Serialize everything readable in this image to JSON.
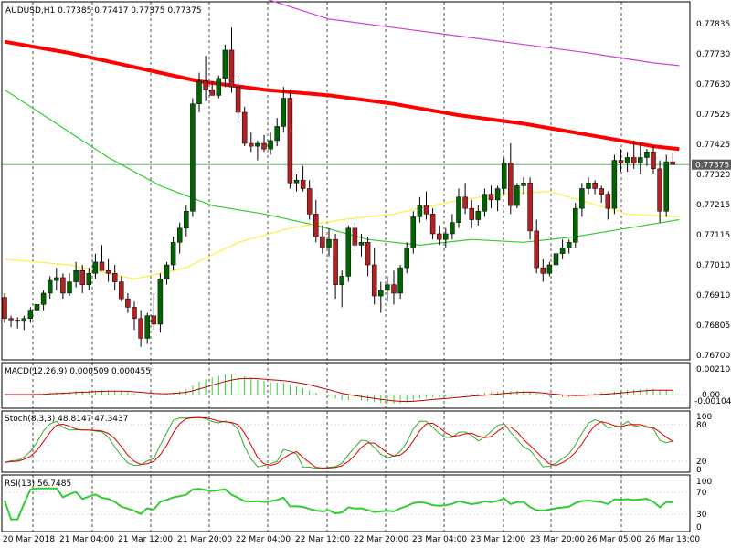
{
  "colors": {
    "bull": "#006400",
    "bear": "#b22222",
    "ma_red": "#ff0000",
    "ma_magenta": "#d43fd4",
    "ma_green": "#33cc33",
    "ma_yellow": "#ffee44",
    "macd_hist": "#33cc33",
    "macd_signal": "#c00000",
    "stoch_main": "#33aa33",
    "stoch_signal": "#dd0000",
    "rsi": "#33cc33",
    "current_price_line": "#33aa33"
  },
  "header": {
    "symbol_line": "AUDUSD,H1  0.77385 0.77417 0.77375 0.77375"
  },
  "price_axis_labels": [
    "0.77835",
    "0.77730",
    "0.77630",
    "0.77525",
    "0.77425",
    "0.77320",
    "0.77215",
    "0.77115",
    "0.77010",
    "0.76910",
    "0.76805",
    "0.76700"
  ],
  "current_price_label": "0.77375",
  "time_labels": [
    "20 Mar 2018",
    "21 Mar 04:00",
    "21 Mar 12:00",
    "21 Mar 20:00",
    "22 Mar 04:00",
    "22 Mar 12:00",
    "22 Mar 20:00",
    "23 Mar 04:00",
    "23 Mar 12:00",
    "23 Mar 20:00",
    "26 Mar 05:00",
    "26 Mar 13:00"
  ],
  "macd": {
    "label": "MACD(12,26,9) 0.000509 0.000455",
    "axis_labels": [
      "0.002104",
      "0.00",
      "-0.001046"
    ]
  },
  "stoch": {
    "label": "Stoch(8,3,3) 48.8147 47.3437",
    "axis_labels": [
      "100",
      "80",
      "20",
      "0"
    ]
  },
  "rsi": {
    "label": "RSI(13) 56.7485",
    "axis_labels": [
      "100",
      "70",
      "30",
      "0"
    ]
  },
  "chart_data": {
    "type": "candlestick",
    "symbol": "AUDUSD",
    "timeframe": "H1",
    "ylim": [
      0.767,
      0.7788
    ],
    "candles": [
      [
        0.76905,
        0.7692,
        0.76815,
        0.7683
      ],
      [
        0.7683,
        0.7684,
        0.768,
        0.76825
      ],
      [
        0.76825,
        0.76835,
        0.76795,
        0.7682
      ],
      [
        0.7682,
        0.7684,
        0.7679,
        0.7683
      ],
      [
        0.7683,
        0.7687,
        0.76815,
        0.7686
      ],
      [
        0.7686,
        0.7689,
        0.7684,
        0.7688
      ],
      [
        0.7688,
        0.7693,
        0.7686,
        0.7692
      ],
      [
        0.7692,
        0.7698,
        0.769,
        0.76965
      ],
      [
        0.76965,
        0.7701,
        0.7693,
        0.76975
      ],
      [
        0.76975,
        0.7699,
        0.769,
        0.7692
      ],
      [
        0.7692,
        0.7699,
        0.7691,
        0.7696
      ],
      [
        0.7696,
        0.7703,
        0.7694,
        0.77
      ],
      [
        0.77,
        0.7702,
        0.7692,
        0.7695
      ],
      [
        0.7695,
        0.7701,
        0.7693,
        0.7699
      ],
      [
        0.7699,
        0.7706,
        0.7697,
        0.7703
      ],
      [
        0.7703,
        0.7709,
        0.7701,
        0.77
      ],
      [
        0.77,
        0.7704,
        0.7696,
        0.7699
      ],
      [
        0.7699,
        0.7702,
        0.7693,
        0.7696
      ],
      [
        0.7696,
        0.7698,
        0.7689,
        0.769
      ],
      [
        0.769,
        0.7692,
        0.7685,
        0.7687
      ],
      [
        0.7687,
        0.7689,
        0.7679,
        0.7683
      ],
      [
        0.7683,
        0.7686,
        0.7673,
        0.7676
      ],
      [
        0.7676,
        0.7685,
        0.7674,
        0.7684
      ],
      [
        0.7684,
        0.7692,
        0.7679,
        0.7681
      ],
      [
        0.7681,
        0.7699,
        0.7678,
        0.7697
      ],
      [
        0.7697,
        0.7703,
        0.7695,
        0.7702
      ],
      [
        0.7702,
        0.7712,
        0.77,
        0.771
      ],
      [
        0.771,
        0.7717,
        0.7706,
        0.7715
      ],
      [
        0.7715,
        0.7723,
        0.7712,
        0.7721
      ],
      [
        0.7721,
        0.7761,
        0.7719,
        0.7759
      ],
      [
        0.7759,
        0.777,
        0.7756,
        0.7767
      ],
      [
        0.7767,
        0.7776,
        0.776,
        0.7764
      ],
      [
        0.7764,
        0.7767,
        0.7762,
        0.7762
      ],
      [
        0.7762,
        0.7769,
        0.7761,
        0.7768
      ],
      [
        0.7768,
        0.778,
        0.7765,
        0.7778
      ],
      [
        0.7778,
        0.7786,
        0.7763,
        0.7765
      ],
      [
        0.7765,
        0.7769,
        0.7752,
        0.7756
      ],
      [
        0.7756,
        0.7758,
        0.7744,
        0.7745
      ],
      [
        0.7745,
        0.7749,
        0.7742,
        0.7744
      ],
      [
        0.7744,
        0.7746,
        0.7739,
        0.7745
      ],
      [
        0.7745,
        0.7748,
        0.7742,
        0.7743
      ],
      [
        0.7743,
        0.7749,
        0.7741,
        0.7746
      ],
      [
        0.7746,
        0.7754,
        0.7744,
        0.7751
      ],
      [
        0.7751,
        0.7765,
        0.7749,
        0.7761
      ],
      [
        0.7761,
        0.7764,
        0.7729,
        0.7731
      ],
      [
        0.7731,
        0.7734,
        0.7728,
        0.7732
      ],
      [
        0.7732,
        0.7737,
        0.7728,
        0.7729
      ],
      [
        0.7729,
        0.7732,
        0.7718,
        0.772
      ],
      [
        0.772,
        0.7725,
        0.771,
        0.7712
      ],
      [
        0.7712,
        0.7716,
        0.7706,
        0.7708
      ],
      [
        0.7708,
        0.7715,
        0.7705,
        0.7711
      ],
      [
        0.7711,
        0.7713,
        0.769,
        0.7695
      ],
      [
        0.7695,
        0.77,
        0.7687,
        0.7698
      ],
      [
        0.7698,
        0.7716,
        0.7696,
        0.7715
      ],
      [
        0.7715,
        0.7717,
        0.7707,
        0.7709
      ],
      [
        0.7709,
        0.7713,
        0.7705,
        0.771
      ],
      [
        0.771,
        0.7712,
        0.7698,
        0.7702
      ],
      [
        0.7702,
        0.7708,
        0.7688,
        0.7691
      ],
      [
        0.7691,
        0.7696,
        0.7685,
        0.7693
      ],
      [
        0.7693,
        0.7698,
        0.7689,
        0.7695
      ],
      [
        0.7695,
        0.77,
        0.7688,
        0.7692
      ],
      [
        0.7692,
        0.7702,
        0.769,
        0.7701
      ],
      [
        0.7701,
        0.771,
        0.7699,
        0.7708
      ],
      [
        0.7708,
        0.7721,
        0.7706,
        0.7719
      ],
      [
        0.7719,
        0.7726,
        0.7717,
        0.7723
      ],
      [
        0.7723,
        0.7728,
        0.7718,
        0.772
      ],
      [
        0.772,
        0.7722,
        0.7711,
        0.7713
      ],
      [
        0.7713,
        0.7716,
        0.7709,
        0.7711
      ],
      [
        0.7711,
        0.7715,
        0.7708,
        0.7713
      ],
      [
        0.7713,
        0.772,
        0.7711,
        0.7717
      ],
      [
        0.7717,
        0.7729,
        0.7715,
        0.7726
      ],
      [
        0.7726,
        0.7731,
        0.772,
        0.7722
      ],
      [
        0.7722,
        0.7725,
        0.7715,
        0.7718
      ],
      [
        0.7718,
        0.7723,
        0.7716,
        0.7721
      ],
      [
        0.7721,
        0.7729,
        0.7719,
        0.7727
      ],
      [
        0.7727,
        0.773,
        0.7722,
        0.7725
      ],
      [
        0.7725,
        0.773,
        0.7721,
        0.7729
      ],
      [
        0.7729,
        0.774,
        0.7727,
        0.7738
      ],
      [
        0.7738,
        0.7745,
        0.772,
        0.7723
      ],
      [
        0.7723,
        0.7731,
        0.7722,
        0.773
      ],
      [
        0.773,
        0.7733,
        0.7727,
        0.7731
      ],
      [
        0.7731,
        0.7733,
        0.7711,
        0.7714
      ],
      [
        0.7714,
        0.7718,
        0.7699,
        0.7701
      ],
      [
        0.7701,
        0.7704,
        0.7696,
        0.7699
      ],
      [
        0.7699,
        0.7703,
        0.7698,
        0.7702
      ],
      [
        0.7702,
        0.7708,
        0.77,
        0.7706
      ],
      [
        0.7706,
        0.7711,
        0.7704,
        0.7708
      ],
      [
        0.7708,
        0.7711,
        0.7706,
        0.771
      ],
      [
        0.771,
        0.7724,
        0.7708,
        0.7722
      ],
      [
        0.7722,
        0.7731,
        0.7719,
        0.7729
      ],
      [
        0.7729,
        0.7733,
        0.7727,
        0.7731
      ],
      [
        0.7731,
        0.7732,
        0.7727,
        0.7729
      ],
      [
        0.7729,
        0.773,
        0.7724,
        0.7727
      ],
      [
        0.7727,
        0.7728,
        0.7718,
        0.7722
      ],
      [
        0.7722,
        0.7741,
        0.772,
        0.7739
      ],
      [
        0.7739,
        0.7743,
        0.7735,
        0.7738
      ],
      [
        0.7738,
        0.7742,
        0.7735,
        0.774
      ],
      [
        0.774,
        0.7746,
        0.7736,
        0.7738
      ],
      [
        0.7738,
        0.7745,
        0.7734,
        0.774
      ],
      [
        0.774,
        0.7743,
        0.7737,
        0.7742
      ],
      [
        0.7742,
        0.7744,
        0.7734,
        0.7736
      ],
      [
        0.7736,
        0.7739,
        0.7717,
        0.7721
      ],
      [
        0.7721,
        0.7741,
        0.7719,
        0.77385
      ],
      [
        0.77385,
        0.77417,
        0.77375,
        0.77375
      ]
    ],
    "series": [
      {
        "type": "line",
        "color_key": "ma_red",
        "points": [
          [
            0,
            0.7781
          ],
          [
            10,
            0.7777
          ],
          [
            20,
            0.7772
          ],
          [
            30,
            0.7767
          ],
          [
            40,
            0.7764
          ],
          [
            50,
            0.7762
          ],
          [
            60,
            0.7759
          ],
          [
            70,
            0.7755
          ],
          [
            80,
            0.7752
          ],
          [
            90,
            0.7748
          ],
          [
            100,
            0.7744
          ],
          [
            104,
            0.7743
          ]
        ]
      },
      {
        "type": "line",
        "color_key": "ma_magenta",
        "points": [
          [
            35,
            0.78
          ],
          [
            50,
            0.7789
          ],
          [
            60,
            0.7786
          ],
          [
            70,
            0.7783
          ],
          [
            80,
            0.778
          ],
          [
            90,
            0.7777
          ],
          [
            100,
            0.77735
          ],
          [
            104,
            0.77725
          ]
        ]
      },
      {
        "type": "line",
        "color_key": "ma_green",
        "points": [
          [
            0,
            0.7764
          ],
          [
            8,
            0.7752
          ],
          [
            16,
            0.774
          ],
          [
            24,
            0.773
          ],
          [
            32,
            0.7723
          ],
          [
            40,
            0.772
          ],
          [
            48,
            0.7716
          ],
          [
            56,
            0.7711
          ],
          [
            64,
            0.7709
          ],
          [
            72,
            0.7711
          ],
          [
            80,
            0.771
          ],
          [
            88,
            0.7712
          ],
          [
            96,
            0.7715
          ],
          [
            104,
            0.7718
          ]
        ]
      },
      {
        "type": "line",
        "color_key": "ma_yellow",
        "points": [
          [
            0,
            0.7704
          ],
          [
            10,
            0.7702
          ],
          [
            20,
            0.7697
          ],
          [
            28,
            0.7701
          ],
          [
            36,
            0.771
          ],
          [
            44,
            0.7715
          ],
          [
            52,
            0.7718
          ],
          [
            60,
            0.772
          ],
          [
            68,
            0.7724
          ],
          [
            76,
            0.7727
          ],
          [
            84,
            0.7728
          ],
          [
            90,
            0.7724
          ],
          [
            96,
            0.772
          ],
          [
            104,
            0.7719
          ]
        ]
      }
    ]
  }
}
